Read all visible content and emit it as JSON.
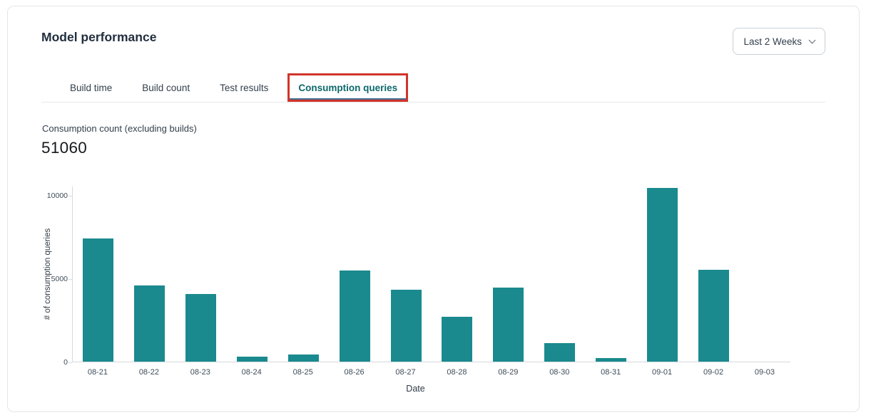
{
  "card": {
    "title": "Model performance",
    "range_selector": {
      "selected": "Last 2 Weeks"
    },
    "tabs": [
      {
        "label": "Build time",
        "active": false
      },
      {
        "label": "Build count",
        "active": false
      },
      {
        "label": "Test results",
        "active": false
      },
      {
        "label": "Consumption queries",
        "active": true,
        "annotated_with_red_box": true
      }
    ],
    "metric": {
      "label": "Consumption count (excluding builds)",
      "value": "51060"
    }
  },
  "chart_data": {
    "type": "bar",
    "title": "",
    "categories": [
      "08-21",
      "08-22",
      "08-23",
      "08-24",
      "08-25",
      "08-26",
      "08-27",
      "08-28",
      "08-29",
      "08-30",
      "08-31",
      "09-01",
      "09-02",
      "09-03"
    ],
    "values": [
      7400,
      4600,
      4050,
      320,
      430,
      5480,
      4340,
      2700,
      4450,
      1120,
      210,
      10430,
      5530,
      0
    ],
    "xlabel": "Date",
    "ylabel": "# of consumption queries",
    "ylim": [
      0,
      10570
    ],
    "yticks": [
      0,
      5000,
      10000
    ],
    "grid": false,
    "legend": "none",
    "bar_color": "#1a8a8e"
  },
  "colors": {
    "bar_teal": "#1a8a8e",
    "active_tab_text": "#0e686c",
    "active_tab_indicator": "#447099",
    "annotation_red": "#d2342a",
    "card_border": "#e3e6ea",
    "axis_line": "#d5d9dd",
    "text_dark": "#222f3e"
  }
}
